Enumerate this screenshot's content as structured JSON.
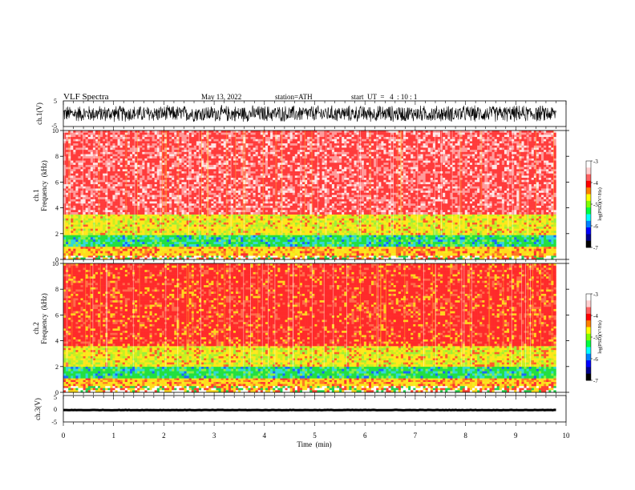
{
  "header": {
    "title": "VLF  Spectra",
    "date": "May 13, 2022",
    "station": "station=ATH",
    "start": "start  UT  =   4  : 10 : 1"
  },
  "chart_data": [
    {
      "type": "line",
      "panel": "ch1-waveform",
      "ylabel": "ch.1(V)",
      "ylim": [
        -5,
        5
      ],
      "yticks": [
        "5",
        "-5"
      ],
      "xlim": [
        0,
        10
      ],
      "description_amplitude": 3.5,
      "color": "#000000"
    },
    {
      "type": "heatmap",
      "panel": "ch1-spectrogram",
      "ylabel_top": "ch.1",
      "ylabel": "Frequency  (kHz)",
      "ylim": [
        0,
        10
      ],
      "yticks": [
        "0",
        "2",
        "4",
        "6",
        "8",
        "10"
      ],
      "xlim": [
        0,
        9.8
      ],
      "bands": [
        {
          "from": 0.0,
          "to": 0.3,
          "level": "mixed-low"
        },
        {
          "from": 0.3,
          "to": 1.0,
          "level": "yellow-orange-lines"
        },
        {
          "from": 1.0,
          "to": 1.9,
          "level": "green-cyan"
        },
        {
          "from": 1.9,
          "to": 3.5,
          "level": "yellow"
        },
        {
          "from": 3.5,
          "to": 10.0,
          "level": "red-white"
        }
      ],
      "colorbar": {
        "label": "log(PSD)(V²/Hz)",
        "ticks": [
          "-3",
          "-4",
          "-5",
          "-6",
          "-7"
        ],
        "range": [
          -7,
          -3
        ]
      }
    },
    {
      "type": "heatmap",
      "panel": "ch2-spectrogram",
      "ylabel_top": "ch.2",
      "ylabel": "Frequency  (kHz)",
      "ylim": [
        0,
        10
      ],
      "yticks": [
        "0",
        "2",
        "4",
        "6",
        "8",
        "10"
      ],
      "xlim": [
        0,
        9.8
      ],
      "bands": [
        {
          "from": 0.0,
          "to": 0.5,
          "level": "mixed-low"
        },
        {
          "from": 0.5,
          "to": 1.1,
          "level": "yellow-orange-lines"
        },
        {
          "from": 1.1,
          "to": 2.0,
          "level": "green-cyan"
        },
        {
          "from": 2.0,
          "to": 3.6,
          "level": "yellow"
        },
        {
          "from": 3.6,
          "to": 10.0,
          "level": "red"
        }
      ],
      "colorbar": {
        "label": "log(PSD)(V²/Hz)",
        "ticks": [
          "-3",
          "-4",
          "-5",
          "-6",
          "-7"
        ],
        "range": [
          -7,
          -3
        ]
      }
    },
    {
      "type": "line",
      "panel": "ch3-waveform",
      "ylabel": "ch.3(V)",
      "ylim": [
        -5,
        5
      ],
      "yticks": [
        "5",
        "0",
        "-5"
      ],
      "xlim": [
        0,
        10
      ],
      "xlabel": "Time  (min)",
      "xticks": [
        "0",
        "1",
        "2",
        "3",
        "4",
        "5",
        "6",
        "7",
        "8",
        "9",
        "10"
      ],
      "level": -0.5,
      "color": "#000000"
    }
  ]
}
